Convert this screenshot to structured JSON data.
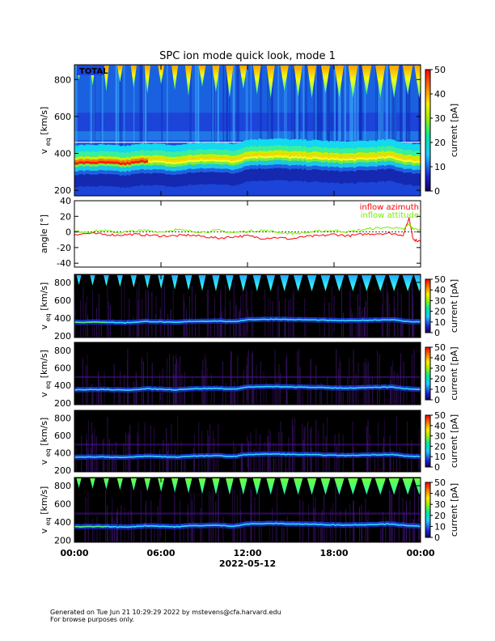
{
  "title": "SPC ion mode quick look, mode 1",
  "date_label": "2022-05-12",
  "footer": {
    "line1": "Generated on Tue Jun 21 10:29:29 2022 by mstevens@cfa.harvard.edu",
    "line2": "For browse purposes only."
  },
  "colors": {
    "azimuth": "#ff0000",
    "attitude": "#77ee00"
  },
  "chart_data": [
    {
      "type": "heatmap",
      "panel": "total",
      "label": "TOTAL",
      "ylabel": "v",
      "ylabel_sub": "eq",
      "ylabel_unit": "[km/s]",
      "ylim": [
        170,
        880
      ],
      "yticks": [
        200,
        400,
        600,
        800
      ],
      "xlim": [
        0,
        24
      ],
      "colorbar": {
        "label": "current [pA]",
        "range": [
          0,
          50
        ],
        "ticks": [
          0,
          10,
          20,
          30,
          40,
          50
        ]
      },
      "cone_hours": [
        0.0,
        0.95,
        1.9,
        2.85,
        3.8,
        4.75,
        5.7,
        6.65,
        7.6,
        8.55,
        9.5,
        10.45,
        11.4,
        12.35,
        13.3,
        14.25,
        15.2,
        16.15,
        17.1,
        18.05,
        19.0,
        19.95,
        20.9,
        21.85,
        22.8,
        23.6
      ],
      "core_speed_kms": [
        [
          0,
          350
        ],
        [
          2,
          352
        ],
        [
          3.5,
          345
        ],
        [
          5,
          360
        ],
        [
          6,
          355
        ],
        [
          7,
          348
        ],
        [
          8,
          360
        ],
        [
          10,
          365
        ],
        [
          11,
          355
        ],
        [
          12,
          380
        ],
        [
          14,
          385
        ],
        [
          15,
          380
        ],
        [
          16,
          378
        ],
        [
          17,
          375
        ],
        [
          18,
          370
        ],
        [
          19,
          368
        ],
        [
          20,
          372
        ],
        [
          22,
          380
        ],
        [
          23,
          360
        ],
        [
          24,
          355
        ]
      ]
    },
    {
      "type": "line",
      "panel": "angle",
      "ylabel": "angle [°]",
      "ylim": [
        -45,
        40
      ],
      "yticks": [
        -40,
        -20,
        0,
        20,
        40
      ],
      "series": [
        {
          "name": "inflow azimuth",
          "x": [
            0,
            1,
            2,
            3,
            4,
            5,
            6,
            7,
            8,
            9,
            10,
            11,
            12,
            13,
            14,
            15,
            16,
            17,
            18,
            19,
            20,
            21,
            22,
            22.8,
            23.2,
            23.5,
            24
          ],
          "values": [
            -3,
            -2,
            -3,
            -4,
            -3,
            -4,
            -5,
            -5,
            -4,
            -6,
            -8,
            -6,
            -5,
            -8,
            -7,
            -9,
            -6,
            -5,
            -3,
            -5,
            -3,
            -2,
            -2,
            -4,
            18,
            -10,
            -12
          ]
        },
        {
          "name": "inflow attitude",
          "x": [
            0,
            1,
            2,
            3,
            4,
            5,
            6,
            7,
            8,
            9,
            10,
            11,
            12,
            13,
            14,
            15,
            16,
            17,
            18,
            19,
            20,
            21,
            22,
            22.8,
            23.2,
            23.5,
            24
          ],
          "values": [
            1,
            0,
            2,
            -1,
            1,
            2,
            0,
            3,
            1,
            0,
            2,
            -1,
            1,
            2,
            0,
            -2,
            -1,
            1,
            2,
            0,
            3,
            5,
            6,
            3,
            10,
            4,
            2
          ]
        }
      ]
    },
    {
      "type": "heatmap",
      "panel": "cup1",
      "ylabel": "v",
      "ylabel_sub": "eq",
      "ylabel_unit": "[km/s]",
      "ylim": [
        180,
        890
      ],
      "yticks": [
        200,
        400,
        600,
        800
      ],
      "colorbar": {
        "label": "current [pA]",
        "range": [
          0,
          50
        ],
        "ticks": [
          0,
          10,
          20,
          30,
          40,
          50
        ]
      },
      "cone_hours": [
        0.0,
        0.95,
        1.9,
        2.85,
        3.8,
        4.75,
        5.7,
        6.65,
        7.6,
        8.55,
        9.5,
        10.45,
        11.4,
        12.35,
        13.3,
        14.25,
        15.2,
        16.15,
        17.1,
        18.05,
        19.0,
        19.95,
        20.9,
        21.85,
        22.8,
        23.6
      ],
      "cone_level": 0.5
    },
    {
      "type": "heatmap",
      "panel": "cup2",
      "ylabel": "v",
      "ylabel_sub": "eq",
      "ylabel_unit": "[km/s]",
      "ylim": [
        180,
        890
      ],
      "yticks": [
        200,
        400,
        600,
        800
      ],
      "colorbar": {
        "label": "current [pA]",
        "range": [
          0,
          50
        ],
        "ticks": [
          0,
          10,
          20,
          30,
          40,
          50
        ]
      },
      "cone_level": 0
    },
    {
      "type": "heatmap",
      "panel": "cup3",
      "ylabel": "v",
      "ylabel_sub": "eq",
      "ylabel_unit": "[km/s]",
      "ylim": [
        180,
        890
      ],
      "yticks": [
        200,
        400,
        600,
        800
      ],
      "colorbar": {
        "label": "current [pA]",
        "range": [
          0,
          50
        ],
        "ticks": [
          0,
          10,
          20,
          30,
          40,
          50
        ]
      },
      "cone_level": 0
    },
    {
      "type": "heatmap",
      "panel": "cup4",
      "ylabel": "v",
      "ylabel_sub": "eq",
      "ylabel_unit": "[km/s]",
      "ylim": [
        180,
        890
      ],
      "yticks": [
        200,
        400,
        600,
        800
      ],
      "colorbar": {
        "label": "current [pA]",
        "range": [
          0,
          50
        ],
        "ticks": [
          0,
          10,
          20,
          30,
          40,
          50
        ]
      },
      "cone_hours": [
        0.0,
        0.95,
        1.9,
        2.85,
        3.8,
        4.75,
        5.7,
        6.65,
        7.6,
        8.55,
        9.5,
        10.45,
        11.4,
        12.35,
        13.3,
        14.25,
        15.2,
        16.15,
        17.1,
        18.05,
        19.0,
        19.95,
        20.9,
        21.85,
        22.8,
        23.6
      ],
      "cone_level": 0.55
    }
  ],
  "xaxis": {
    "ticks": [
      "00:00",
      "06:00",
      "12:00",
      "18:00",
      "00:00"
    ]
  }
}
